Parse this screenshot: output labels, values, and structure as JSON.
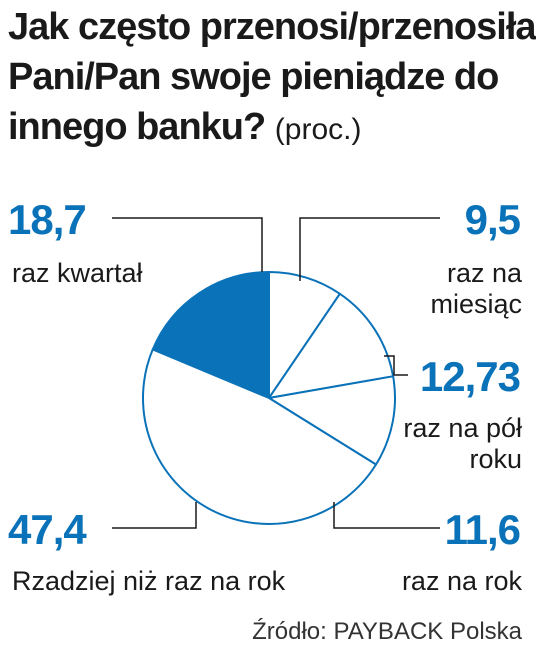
{
  "title": "Jak często przenosi/przenosiła Pani/Pan swoje pieniądze do innego banku?",
  "unit": "(proc.)",
  "source": "Źródło: PAYBACK Polska",
  "colors": {
    "accent": "#0a72b8",
    "outline": "#0a72b8",
    "empty": "#ffffff"
  },
  "chart_data": {
    "type": "pie",
    "unit": "proc.",
    "slices": [
      {
        "value": "18,7",
        "num": 18.7,
        "label": "raz kwartał",
        "filled": true
      },
      {
        "value": "9,5",
        "num": 9.5,
        "label": "raz na miesiąc",
        "filled": false
      },
      {
        "value": "12,73",
        "num": 12.73,
        "label": "raz na pół roku",
        "filled": false
      },
      {
        "value": "11,6",
        "num": 11.6,
        "label": "raz na rok",
        "filled": false
      },
      {
        "value": "47,4",
        "num": 47.4,
        "label": "Rzadziej niż raz na rok",
        "filled": false
      }
    ]
  }
}
